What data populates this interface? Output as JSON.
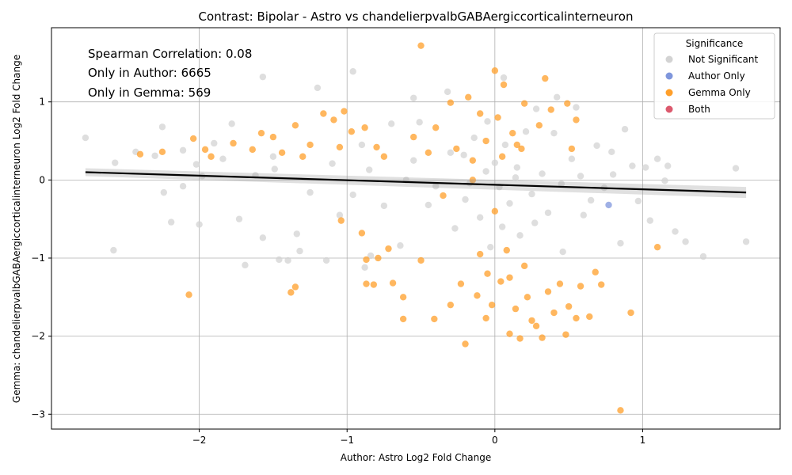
{
  "chart_data": {
    "type": "scatter",
    "title": "Contrast: Bipolar - Astro vs chandelierpvalbGABAergiccorticalinterneuron",
    "xlabel": "Author: Astro Log2 Fold Change",
    "ylabel": "Gemma: chandelierpvalbGABAergiccorticalinterneuron Log2 Fold Change",
    "xlim": [
      -3.0,
      1.93
    ],
    "ylim": [
      -3.19,
      1.95
    ],
    "x_ticks": [
      -2,
      -1,
      0,
      1
    ],
    "y_ticks": [
      -3,
      -2,
      -1,
      0,
      1
    ],
    "x_tick_labels": [
      "−2",
      "−1",
      "0",
      "1"
    ],
    "y_tick_labels": [
      "−3",
      "−2",
      "−1",
      "0",
      "1"
    ],
    "grid": true,
    "annotations": [
      "Spearman Correlation: 0.08",
      "Only in Author: 6665",
      "Only in Gemma: 569"
    ],
    "legend": {
      "title": "Significance",
      "placement": "top-right",
      "entries": [
        {
          "label": "Not Significant",
          "color": "#d3d3d3"
        },
        {
          "label": "Author Only",
          "color": "#7f96dc"
        },
        {
          "label": "Gemma Only",
          "color": "#ff9f2a"
        },
        {
          "label": "Both",
          "color": "#dc5a6e"
        }
      ]
    },
    "regression_line": {
      "x": [
        -2.77,
        1.7
      ],
      "y": [
        0.1,
        -0.16
      ],
      "color": "#000000"
    },
    "series": [
      {
        "name": "Not Significant",
        "color": "#d3d3d3",
        "points": [
          [
            -2.77,
            0.54
          ],
          [
            -2.58,
            -0.9
          ],
          [
            -2.57,
            0.22
          ],
          [
            -2.43,
            0.36
          ],
          [
            -2.3,
            0.31
          ],
          [
            -2.25,
            0.68
          ],
          [
            -2.24,
            -0.16
          ],
          [
            -2.19,
            -0.54
          ],
          [
            -2.11,
            0.38
          ],
          [
            -2.11,
            -0.08
          ],
          [
            -2.02,
            0.2
          ],
          [
            -2.0,
            -0.57
          ],
          [
            -1.9,
            0.47
          ],
          [
            -1.84,
            0.27
          ],
          [
            -1.78,
            0.72
          ],
          [
            -1.73,
            -0.5
          ],
          [
            -1.69,
            -1.09
          ],
          [
            -1.57,
            -0.74
          ],
          [
            -1.57,
            1.32
          ],
          [
            -1.49,
            0.14
          ],
          [
            -1.46,
            -1.02
          ],
          [
            -1.4,
            -1.03
          ],
          [
            -1.34,
            -0.69
          ],
          [
            -1.32,
            -0.91
          ],
          [
            -1.2,
            1.18
          ],
          [
            -1.14,
            -1.03
          ],
          [
            -1.05,
            -0.45
          ],
          [
            -0.96,
            1.39
          ],
          [
            -0.96,
            -0.19
          ],
          [
            -0.88,
            -1.12
          ],
          [
            -0.84,
            -0.97
          ],
          [
            -0.7,
            0.72
          ],
          [
            -0.64,
            -0.84
          ],
          [
            -0.55,
            1.05
          ],
          [
            -0.51,
            0.74
          ],
          [
            -0.45,
            -0.32
          ],
          [
            -0.32,
            1.13
          ],
          [
            -0.27,
            -0.62
          ],
          [
            -0.21,
            0.32
          ],
          [
            -0.17,
            -0.04
          ],
          [
            -0.14,
            0.54
          ],
          [
            -0.1,
            -0.48
          ],
          [
            -0.06,
            0.11
          ],
          [
            -0.03,
            -0.86
          ],
          [
            0.0,
            0.22
          ],
          [
            0.03,
            -0.09
          ],
          [
            0.06,
            1.31
          ],
          [
            0.07,
            0.45
          ],
          [
            0.1,
            -0.3
          ],
          [
            0.14,
            0.03
          ],
          [
            0.17,
            -0.71
          ],
          [
            0.21,
            0.62
          ],
          [
            0.25,
            -0.18
          ],
          [
            0.28,
            0.91
          ],
          [
            0.32,
            0.08
          ],
          [
            0.36,
            -0.42
          ],
          [
            0.42,
            1.06
          ],
          [
            0.46,
            -0.92
          ],
          [
            0.52,
            0.27
          ],
          [
            0.55,
            0.93
          ],
          [
            0.6,
            -0.45
          ],
          [
            0.65,
            -0.26
          ],
          [
            0.69,
            0.44
          ],
          [
            0.74,
            -0.1
          ],
          [
            0.79,
            0.36
          ],
          [
            0.85,
            -0.81
          ],
          [
            0.88,
            0.65
          ],
          [
            0.93,
            0.18
          ],
          [
            0.97,
            -0.27
          ],
          [
            1.02,
            0.16
          ],
          [
            1.05,
            -0.52
          ],
          [
            1.1,
            0.27
          ],
          [
            1.15,
            -0.01
          ],
          [
            1.17,
            0.18
          ],
          [
            1.22,
            -0.66
          ],
          [
            1.29,
            -0.79
          ],
          [
            1.41,
            -0.98
          ],
          [
            1.63,
            0.15
          ],
          [
            1.7,
            -0.79
          ],
          [
            -1.98,
            0.05
          ],
          [
            -1.62,
            0.06
          ],
          [
            -1.25,
            -0.16
          ],
          [
            -0.85,
            0.13
          ],
          [
            -0.4,
            -0.08
          ],
          [
            0.15,
            0.16
          ],
          [
            0.58,
            0.05
          ],
          [
            -1.1,
            0.21
          ],
          [
            -0.75,
            -0.33
          ],
          [
            0.4,
            0.6
          ],
          [
            -0.3,
            0.35
          ],
          [
            -0.6,
            0.0
          ],
          [
            0.27,
            -0.55
          ],
          [
            -0.9,
            0.45
          ],
          [
            0.8,
            0.07
          ],
          [
            -1.5,
            0.3
          ],
          [
            -0.05,
            0.75
          ],
          [
            0.05,
            -0.6
          ],
          [
            -0.2,
            -0.25
          ],
          [
            0.45,
            -0.05
          ],
          [
            -0.55,
            0.25
          ]
        ]
      },
      {
        "name": "Author Only",
        "color": "#7f96dc",
        "points": [
          [
            0.77,
            -0.32
          ]
        ]
      },
      {
        "name": "Gemma Only",
        "color": "#ff9f2a",
        "points": [
          [
            -2.4,
            0.33
          ],
          [
            -2.25,
            0.36
          ],
          [
            -2.07,
            -1.47
          ],
          [
            -2.04,
            0.53
          ],
          [
            -1.96,
            0.39
          ],
          [
            -1.92,
            0.3
          ],
          [
            -1.77,
            0.47
          ],
          [
            -1.64,
            0.39
          ],
          [
            -1.58,
            0.6
          ],
          [
            -1.5,
            0.55
          ],
          [
            -1.44,
            0.35
          ],
          [
            -1.38,
            -1.44
          ],
          [
            -1.35,
            -1.37
          ],
          [
            -1.35,
            0.7
          ],
          [
            -1.3,
            0.3
          ],
          [
            -1.25,
            0.45
          ],
          [
            -1.16,
            0.85
          ],
          [
            -1.09,
            0.77
          ],
          [
            -1.05,
            0.42
          ],
          [
            -1.04,
            -0.52
          ],
          [
            -1.02,
            0.88
          ],
          [
            -0.97,
            0.62
          ],
          [
            -0.9,
            -0.68
          ],
          [
            -0.88,
            0.67
          ],
          [
            -0.87,
            -1.02
          ],
          [
            -0.87,
            -1.33
          ],
          [
            -0.82,
            -1.34
          ],
          [
            -0.8,
            0.42
          ],
          [
            -0.79,
            -1.0
          ],
          [
            -0.75,
            0.3
          ],
          [
            -0.72,
            -0.88
          ],
          [
            -0.69,
            -1.32
          ],
          [
            -0.62,
            -1.5
          ],
          [
            -0.62,
            -1.78
          ],
          [
            -0.55,
            0.55
          ],
          [
            -0.5,
            1.72
          ],
          [
            -0.5,
            -1.03
          ],
          [
            -0.45,
            0.35
          ],
          [
            -0.41,
            -1.78
          ],
          [
            -0.4,
            0.67
          ],
          [
            -0.35,
            -0.2
          ],
          [
            -0.3,
            0.99
          ],
          [
            -0.3,
            -1.6
          ],
          [
            -0.26,
            0.4
          ],
          [
            -0.23,
            -1.33
          ],
          [
            -0.2,
            -2.1
          ],
          [
            -0.18,
            1.06
          ],
          [
            -0.15,
            0.25
          ],
          [
            -0.12,
            -1.48
          ],
          [
            -0.1,
            0.85
          ],
          [
            -0.06,
            0.5
          ],
          [
            -0.06,
            -1.77
          ],
          [
            -0.02,
            -1.6
          ],
          [
            0.0,
            1.4
          ],
          [
            0.02,
            0.8
          ],
          [
            0.04,
            -1.3
          ],
          [
            0.06,
            1.22
          ],
          [
            0.08,
            -0.9
          ],
          [
            0.1,
            -1.97
          ],
          [
            0.12,
            0.6
          ],
          [
            0.14,
            -1.65
          ],
          [
            0.17,
            -2.03
          ],
          [
            0.18,
            0.4
          ],
          [
            0.2,
            0.98
          ],
          [
            0.22,
            -1.5
          ],
          [
            0.25,
            -1.8
          ],
          [
            0.28,
            -1.87
          ],
          [
            0.3,
            0.7
          ],
          [
            0.32,
            -2.02
          ],
          [
            0.34,
            1.3
          ],
          [
            0.36,
            -1.43
          ],
          [
            0.38,
            0.9
          ],
          [
            0.4,
            -1.7
          ],
          [
            0.44,
            -1.33
          ],
          [
            0.48,
            -1.98
          ],
          [
            0.49,
            0.98
          ],
          [
            0.5,
            -1.62
          ],
          [
            0.52,
            0.4
          ],
          [
            0.55,
            0.77
          ],
          [
            0.55,
            -1.77
          ],
          [
            0.58,
            -1.36
          ],
          [
            0.64,
            -1.75
          ],
          [
            0.68,
            -1.18
          ],
          [
            0.72,
            -1.34
          ],
          [
            0.85,
            -2.95
          ],
          [
            0.92,
            -1.7
          ],
          [
            1.1,
            -0.86
          ],
          [
            -0.15,
            0.0
          ],
          [
            0.0,
            -0.4
          ],
          [
            0.05,
            0.3
          ],
          [
            -0.05,
            -1.2
          ],
          [
            0.1,
            -1.25
          ],
          [
            0.15,
            0.45
          ],
          [
            -0.1,
            -0.95
          ],
          [
            0.2,
            -1.1
          ]
        ]
      },
      {
        "name": "Both",
        "color": "#dc5a6e",
        "points": []
      }
    ]
  }
}
